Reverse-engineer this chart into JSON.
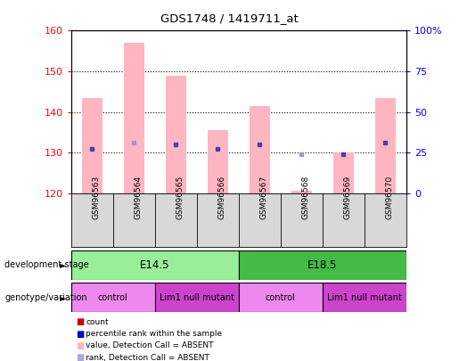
{
  "title": "GDS1748 / 1419711_at",
  "samples": [
    "GSM96563",
    "GSM96564",
    "GSM96565",
    "GSM96566",
    "GSM96567",
    "GSM96568",
    "GSM96569",
    "GSM96570"
  ],
  "bar_values": [
    143.5,
    157.0,
    149.0,
    135.5,
    141.5,
    120.5,
    130.0,
    143.5
  ],
  "bar_absent": [
    true,
    false,
    false,
    false,
    false,
    true,
    false,
    true
  ],
  "rank_values": [
    131.0,
    132.5,
    132.0,
    131.0,
    132.0,
    129.5,
    129.5,
    132.5
  ],
  "rank_absent": [
    false,
    true,
    false,
    false,
    false,
    true,
    false,
    false
  ],
  "ylim_left": [
    120,
    160
  ],
  "ylim_right": [
    0,
    100
  ],
  "yticks_left": [
    120,
    130,
    140,
    150,
    160
  ],
  "yticks_right": [
    0,
    25,
    50,
    75,
    100
  ],
  "dev_stage": [
    {
      "label": "E14.5",
      "start": 0,
      "end": 4,
      "color": "#99EE99"
    },
    {
      "label": "E18.5",
      "start": 4,
      "end": 8,
      "color": "#44BB44"
    }
  ],
  "genotype": [
    {
      "label": "control",
      "start": 0,
      "end": 2,
      "color": "#EE88EE"
    },
    {
      "label": "Lim1 null mutant",
      "start": 2,
      "end": 4,
      "color": "#CC44CC"
    },
    {
      "label": "control",
      "start": 4,
      "end": 6,
      "color": "#EE88EE"
    },
    {
      "label": "Lim1 null mutant",
      "start": 6,
      "end": 8,
      "color": "#CC44CC"
    }
  ],
  "bar_color_present": "#FFB6C1",
  "bar_color_absent": "#FFB6C1",
  "marker_color_present": "#4444AA",
  "marker_color_absent": "#9999CC",
  "legend_square_colors": [
    "#CC0000",
    "#0000CC",
    "#FFB6C1",
    "#AAAADD"
  ],
  "legend_labels": [
    "count",
    "percentile rank within the sample",
    "value, Detection Call = ABSENT",
    "rank, Detection Call = ABSENT"
  ]
}
